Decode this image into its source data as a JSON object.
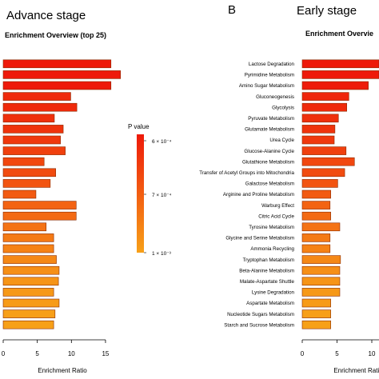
{
  "panel_a": {
    "stage_title": "Advance stage",
    "subtitle": "Enrichment Overview (top 25)",
    "xlabel": "Enrichment Ratio",
    "xticks": [
      "0",
      "5",
      "10",
      "15"
    ]
  },
  "panel_b": {
    "letter": "B",
    "stage_title": "Early stage",
    "subtitle": "Enrichment Overvie",
    "xlabel": "Enrichment Ratio",
    "xticks": [
      "0",
      "5",
      "10"
    ]
  },
  "legend": {
    "title": "P value",
    "labels": [
      "6 × 10⁻⁴",
      "7 × 10⁻⁴",
      "1 × 10⁻³"
    ],
    "color_top": "#ee1a0a",
    "color_bottom": "#f7a018"
  },
  "chart_data": [
    {
      "type": "bar",
      "orientation": "horizontal",
      "title": "Enrichment Overview (top 25)",
      "xlabel": "Enrichment Ratio",
      "xlim": [
        0,
        17
      ],
      "values": [
        15.8,
        17.2,
        15.8,
        9.9,
        10.8,
        7.5,
        8.8,
        8.4,
        9.1,
        6.0,
        7.7,
        6.9,
        4.8,
        10.7,
        10.7,
        6.3,
        7.4,
        7.4,
        7.8,
        8.2,
        8.1,
        7.4,
        8.2,
        7.6,
        7.4
      ],
      "colors": [
        "#ee1a0a",
        "#ee1a0a",
        "#ee1a0a",
        "#ef2a0b",
        "#ef2a0b",
        "#ef300c",
        "#ef330c",
        "#f0380d",
        "#f0400e",
        "#f1470f",
        "#f14c10",
        "#f25411",
        "#f25a12",
        "#f36313",
        "#f36a14",
        "#f47315",
        "#f47a15",
        "#f58216",
        "#f58816",
        "#f68f17",
        "#f69417",
        "#f69817",
        "#f79b18",
        "#f79f18",
        "#f7a018"
      ]
    },
    {
      "type": "bar",
      "orientation": "horizontal",
      "xlabel": "Enrichment Ratio",
      "xlim": [
        0,
        11
      ],
      "categories": [
        "Lactose Degradation",
        "Pyrimidine Metabolism",
        "Amino Sugar Metabolism",
        "Gluconeogenesis",
        "Glycolysis",
        "Pyruvate Metabolism",
        "Glutamate Metabolism",
        "Urea Cycle",
        "Glucose-Alanine Cycle",
        "Glutathione Metabolism",
        "Transfer of Acetyl Groups into Mitochondria",
        "Galactose Metabolism",
        "Arginine and Proline Metabolism",
        "Warburg Effect",
        "Citric Acid Cycle",
        "Tyrosine Metabolism",
        "Glycine and Serine Metabolism",
        "Ammonia Recycling",
        "Tryptophan Metabolism",
        "Beta-Alanine Metabolism",
        "Malate-Aspartate Shuttle",
        "Lysine Degradation",
        "Aspartate Metabolism",
        "Nucleotide Sugars Metabolism",
        "Starch and Sucrose Metabolism"
      ],
      "values": [
        11.5,
        11.5,
        9.5,
        6.7,
        6.4,
        5.2,
        4.7,
        4.6,
        6.3,
        7.5,
        6.1,
        5.1,
        4.1,
        4.0,
        4.1,
        5.4,
        4.0,
        4.0,
        5.5,
        5.4,
        5.4,
        5.4,
        4.1,
        4.1,
        4.1
      ],
      "colors": [
        "#ee1a0a",
        "#ee1a0a",
        "#ee1c0a",
        "#ef260b",
        "#ef2a0b",
        "#ef300c",
        "#ef330c",
        "#f0380d",
        "#f0400e",
        "#f1470f",
        "#f14c10",
        "#f25411",
        "#f25a12",
        "#f36313",
        "#f36a14",
        "#f47315",
        "#f47a15",
        "#f58216",
        "#f58816",
        "#f68f17",
        "#f69417",
        "#f69817",
        "#f79b18",
        "#f79f18",
        "#f7a018"
      ]
    }
  ]
}
